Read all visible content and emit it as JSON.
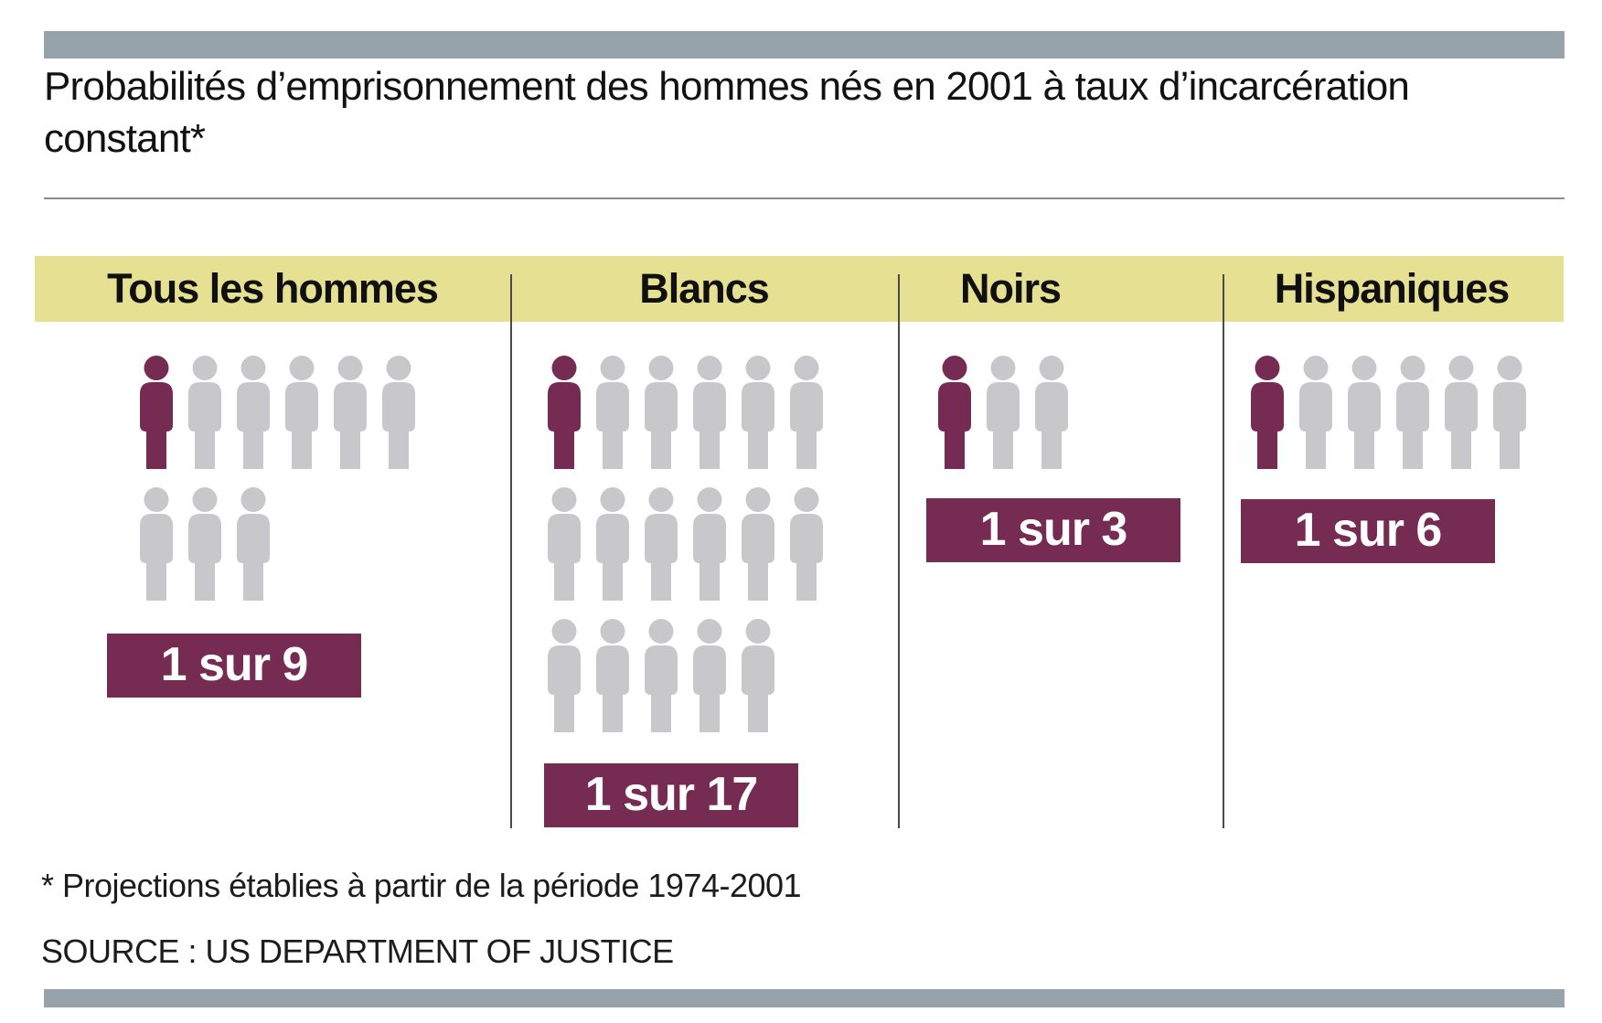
{
  "title": "Probabilités d’emprisonnement des hommes nés en 2001 à taux d’incarcération constant*",
  "footnote": "* Projections établies à partir de la période 1974-2001",
  "source": "SOURCE : US DEPARTMENT OF JUSTICE",
  "colors": {
    "accent_maroon": "#762B52",
    "figure_gray": "#C8C8CA",
    "band_yellow": "#E6E092",
    "bar_bluegray": "#97A3AA",
    "divider_gray": "#4A4A4A"
  },
  "columns": [
    {
      "header": "Tous les hommes",
      "label": "1 sur 9",
      "icon_rows": [
        6,
        3
      ],
      "total_icons": 9,
      "highlighted_icons": 1
    },
    {
      "header": "Blancs",
      "label": "1 sur 17",
      "icon_rows": [
        6,
        6,
        5
      ],
      "total_icons": 17,
      "highlighted_icons": 1
    },
    {
      "header": "Noirs",
      "label": "1 sur 3",
      "icon_rows": [
        3
      ],
      "total_icons": 3,
      "highlighted_icons": 1
    },
    {
      "header": "Hispaniques",
      "label": "1 sur 6",
      "icon_rows": [
        6
      ],
      "total_icons": 6,
      "highlighted_icons": 1
    }
  ],
  "chart_data": {
    "type": "pictogram",
    "title": "Probabilités d’emprisonnement des hommes nés en 2001 à taux d’incarcération constant*",
    "categories": [
      "Tous les hommes",
      "Blancs",
      "Noirs",
      "Hispaniques"
    ],
    "values": [
      "1 sur 9",
      "1 sur 17",
      "1 sur 3",
      "1 sur 6"
    ],
    "denominators": [
      9,
      17,
      3,
      6
    ],
    "probabilities": [
      0.111,
      0.059,
      0.333,
      0.167
    ],
    "icon_counts": [
      9,
      17,
      3,
      6
    ],
    "highlighted_per_group": 1,
    "footnote": "* Projections établies à partir de la période 1974-2001",
    "source": "SOURCE : US DEPARTMENT OF JUSTICE",
    "legend_position": "none",
    "grid": false
  }
}
